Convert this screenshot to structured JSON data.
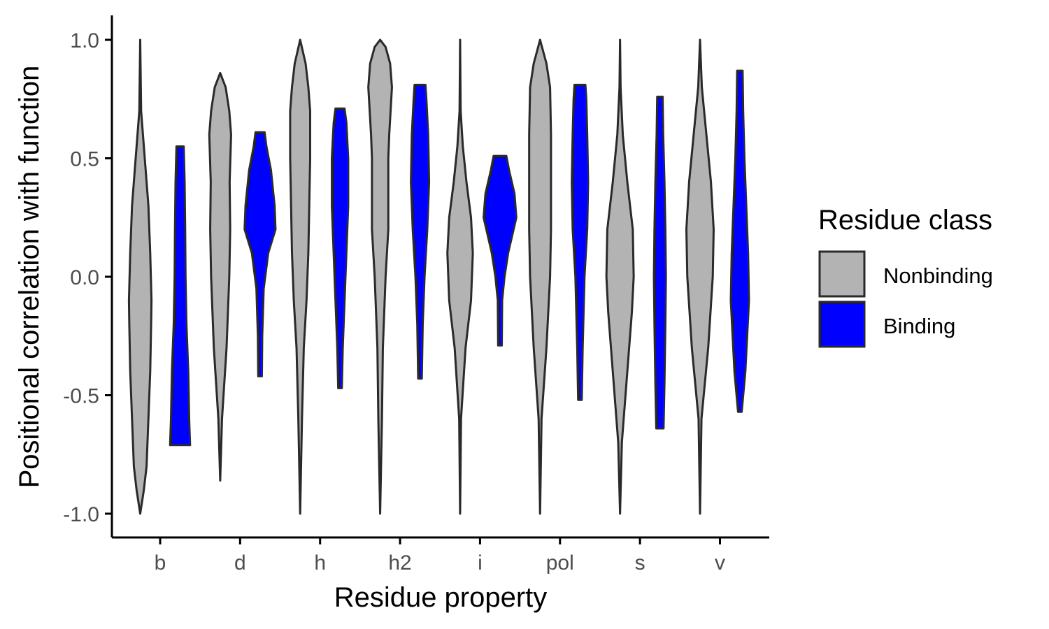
{
  "chart_data": {
    "type": "violin",
    "title": "",
    "xlabel": "Residue property",
    "ylabel": "Positional correlation with function",
    "ylim": [
      -1.0,
      1.0
    ],
    "yticks": [
      -1.0,
      -0.5,
      0.0,
      0.5,
      1.0
    ],
    "ytick_labels": [
      "-1.0",
      "-0.5",
      "0.0",
      "0.5",
      "1.0"
    ],
    "categories": [
      "b",
      "d",
      "h",
      "h2",
      "i",
      "pol",
      "s",
      "v"
    ],
    "grid": false,
    "legend": {
      "title": "Residue class",
      "placement": "right",
      "entries": [
        {
          "name": "Nonbinding",
          "color": "#b3b3b3"
        },
        {
          "name": "Binding",
          "color": "#0000ff"
        }
      ]
    },
    "outline_color": "#2a2a2a",
    "series": [
      {
        "name": "Nonbinding",
        "color": "#b3b3b3",
        "violins": [
          {
            "category": "b",
            "min": -1.0,
            "max": 1.0,
            "profile": [
              [
                -1.0,
                0.0
              ],
              [
                -0.9,
                0.2
              ],
              [
                -0.8,
                0.35
              ],
              [
                -0.6,
                0.45
              ],
              [
                -0.4,
                0.55
              ],
              [
                -0.2,
                0.6
              ],
              [
                -0.1,
                0.62
              ],
              [
                0.1,
                0.55
              ],
              [
                0.3,
                0.45
              ],
              [
                0.5,
                0.25
              ],
              [
                0.7,
                0.05
              ],
              [
                1.0,
                0.0
              ]
            ]
          },
          {
            "category": "d",
            "min": -0.86,
            "max": 0.86,
            "profile": [
              [
                -0.86,
                0.0
              ],
              [
                -0.6,
                0.1
              ],
              [
                -0.3,
                0.35
              ],
              [
                0.0,
                0.5
              ],
              [
                0.2,
                0.55
              ],
              [
                0.4,
                0.52
              ],
              [
                0.6,
                0.6
              ],
              [
                0.7,
                0.5
              ],
              [
                0.8,
                0.3
              ],
              [
                0.86,
                0.0
              ]
            ]
          },
          {
            "category": "h",
            "min": -1.0,
            "max": 1.0,
            "profile": [
              [
                -1.0,
                0.0
              ],
              [
                -0.6,
                0.1
              ],
              [
                -0.3,
                0.2
              ],
              [
                -0.1,
                0.35
              ],
              [
                0.1,
                0.45
              ],
              [
                0.3,
                0.5
              ],
              [
                0.5,
                0.55
              ],
              [
                0.7,
                0.55
              ],
              [
                0.8,
                0.45
              ],
              [
                0.9,
                0.3
              ],
              [
                1.0,
                0.0
              ]
            ]
          },
          {
            "category": "h2",
            "min": -1.0,
            "max": 1.0,
            "profile": [
              [
                -1.0,
                0.0
              ],
              [
                -0.6,
                0.1
              ],
              [
                -0.3,
                0.15
              ],
              [
                0.0,
                0.3
              ],
              [
                0.2,
                0.45
              ],
              [
                0.5,
                0.45
              ],
              [
                0.6,
                0.5
              ],
              [
                0.8,
                0.65
              ],
              [
                0.9,
                0.55
              ],
              [
                0.97,
                0.3
              ],
              [
                1.0,
                0.0
              ]
            ]
          },
          {
            "category": "i",
            "min": -1.0,
            "max": 1.0,
            "profile": [
              [
                -1.0,
                0.0
              ],
              [
                -0.6,
                0.05
              ],
              [
                -0.3,
                0.3
              ],
              [
                -0.1,
                0.6
              ],
              [
                0.1,
                0.7
              ],
              [
                0.25,
                0.6
              ],
              [
                0.4,
                0.35
              ],
              [
                0.55,
                0.15
              ],
              [
                0.7,
                0.03
              ],
              [
                1.0,
                0.0
              ]
            ]
          },
          {
            "category": "pol",
            "min": -1.0,
            "max": 1.0,
            "profile": [
              [
                -1.0,
                0.0
              ],
              [
                -0.6,
                0.08
              ],
              [
                -0.3,
                0.35
              ],
              [
                0.0,
                0.55
              ],
              [
                0.2,
                0.6
              ],
              [
                0.4,
                0.6
              ],
              [
                0.6,
                0.6
              ],
              [
                0.8,
                0.55
              ],
              [
                0.9,
                0.35
              ],
              [
                1.0,
                0.0
              ]
            ]
          },
          {
            "category": "s",
            "min": -1.0,
            "max": 1.0,
            "profile": [
              [
                -1.0,
                0.0
              ],
              [
                -0.7,
                0.1
              ],
              [
                -0.4,
                0.4
              ],
              [
                -0.15,
                0.65
              ],
              [
                0.0,
                0.75
              ],
              [
                0.2,
                0.7
              ],
              [
                0.4,
                0.4
              ],
              [
                0.6,
                0.15
              ],
              [
                0.8,
                0.03
              ],
              [
                1.0,
                0.0
              ]
            ]
          },
          {
            "category": "v",
            "min": -1.0,
            "max": 1.0,
            "profile": [
              [
                -1.0,
                0.0
              ],
              [
                -0.6,
                0.08
              ],
              [
                -0.3,
                0.45
              ],
              [
                0.0,
                0.7
              ],
              [
                0.2,
                0.75
              ],
              [
                0.4,
                0.6
              ],
              [
                0.6,
                0.35
              ],
              [
                0.8,
                0.1
              ],
              [
                1.0,
                0.0
              ]
            ]
          }
        ]
      },
      {
        "name": "Binding",
        "color": "#0000ff",
        "violins": [
          {
            "category": "b",
            "min": -0.71,
            "max": 0.55,
            "profile": [
              [
                -0.71,
                0.55
              ],
              [
                -0.6,
                0.5
              ],
              [
                -0.4,
                0.45
              ],
              [
                -0.2,
                0.35
              ],
              [
                0.0,
                0.3
              ],
              [
                0.2,
                0.28
              ],
              [
                0.4,
                0.25
              ],
              [
                0.55,
                0.2
              ]
            ]
          },
          {
            "category": "d",
            "min": -0.42,
            "max": 0.61,
            "profile": [
              [
                -0.42,
                0.1
              ],
              [
                -0.25,
                0.12
              ],
              [
                -0.05,
                0.2
              ],
              [
                0.1,
                0.45
              ],
              [
                0.2,
                0.85
              ],
              [
                0.3,
                0.8
              ],
              [
                0.45,
                0.6
              ],
              [
                0.55,
                0.35
              ],
              [
                0.61,
                0.25
              ]
            ]
          },
          {
            "category": "h",
            "min": -0.47,
            "max": 0.71,
            "profile": [
              [
                -0.47,
                0.1
              ],
              [
                -0.3,
                0.15
              ],
              [
                -0.1,
                0.25
              ],
              [
                0.1,
                0.35
              ],
              [
                0.3,
                0.45
              ],
              [
                0.5,
                0.45
              ],
              [
                0.65,
                0.35
              ],
              [
                0.71,
                0.25
              ]
            ]
          },
          {
            "category": "h2",
            "min": -0.43,
            "max": 0.81,
            "profile": [
              [
                -0.43,
                0.1
              ],
              [
                -0.2,
                0.15
              ],
              [
                0.0,
                0.25
              ],
              [
                0.2,
                0.4
              ],
              [
                0.4,
                0.5
              ],
              [
                0.6,
                0.45
              ],
              [
                0.75,
                0.35
              ],
              [
                0.81,
                0.3
              ]
            ]
          },
          {
            "category": "i",
            "min": -0.29,
            "max": 0.51,
            "profile": [
              [
                -0.29,
                0.1
              ],
              [
                -0.1,
                0.12
              ],
              [
                0.0,
                0.25
              ],
              [
                0.1,
                0.45
              ],
              [
                0.25,
                0.9
              ],
              [
                0.35,
                0.8
              ],
              [
                0.45,
                0.5
              ],
              [
                0.51,
                0.35
              ]
            ]
          },
          {
            "category": "pol",
            "min": -0.52,
            "max": 0.81,
            "profile": [
              [
                -0.52,
                0.1
              ],
              [
                -0.3,
                0.15
              ],
              [
                0.0,
                0.25
              ],
              [
                0.2,
                0.4
              ],
              [
                0.4,
                0.45
              ],
              [
                0.6,
                0.4
              ],
              [
                0.75,
                0.35
              ],
              [
                0.81,
                0.3
              ]
            ]
          },
          {
            "category": "s",
            "min": -0.64,
            "max": 0.76,
            "profile": [
              [
                -0.64,
                0.2
              ],
              [
                -0.45,
                0.25
              ],
              [
                -0.2,
                0.3
              ],
              [
                0.0,
                0.33
              ],
              [
                0.2,
                0.3
              ],
              [
                0.4,
                0.25
              ],
              [
                0.6,
                0.18
              ],
              [
                0.76,
                0.15
              ]
            ]
          },
          {
            "category": "v",
            "min": -0.57,
            "max": 0.87,
            "profile": [
              [
                -0.57,
                0.1
              ],
              [
                -0.4,
                0.3
              ],
              [
                -0.1,
                0.5
              ],
              [
                0.1,
                0.45
              ],
              [
                0.3,
                0.35
              ],
              [
                0.5,
                0.25
              ],
              [
                0.7,
                0.18
              ],
              [
                0.87,
                0.15
              ]
            ]
          }
        ]
      }
    ]
  }
}
